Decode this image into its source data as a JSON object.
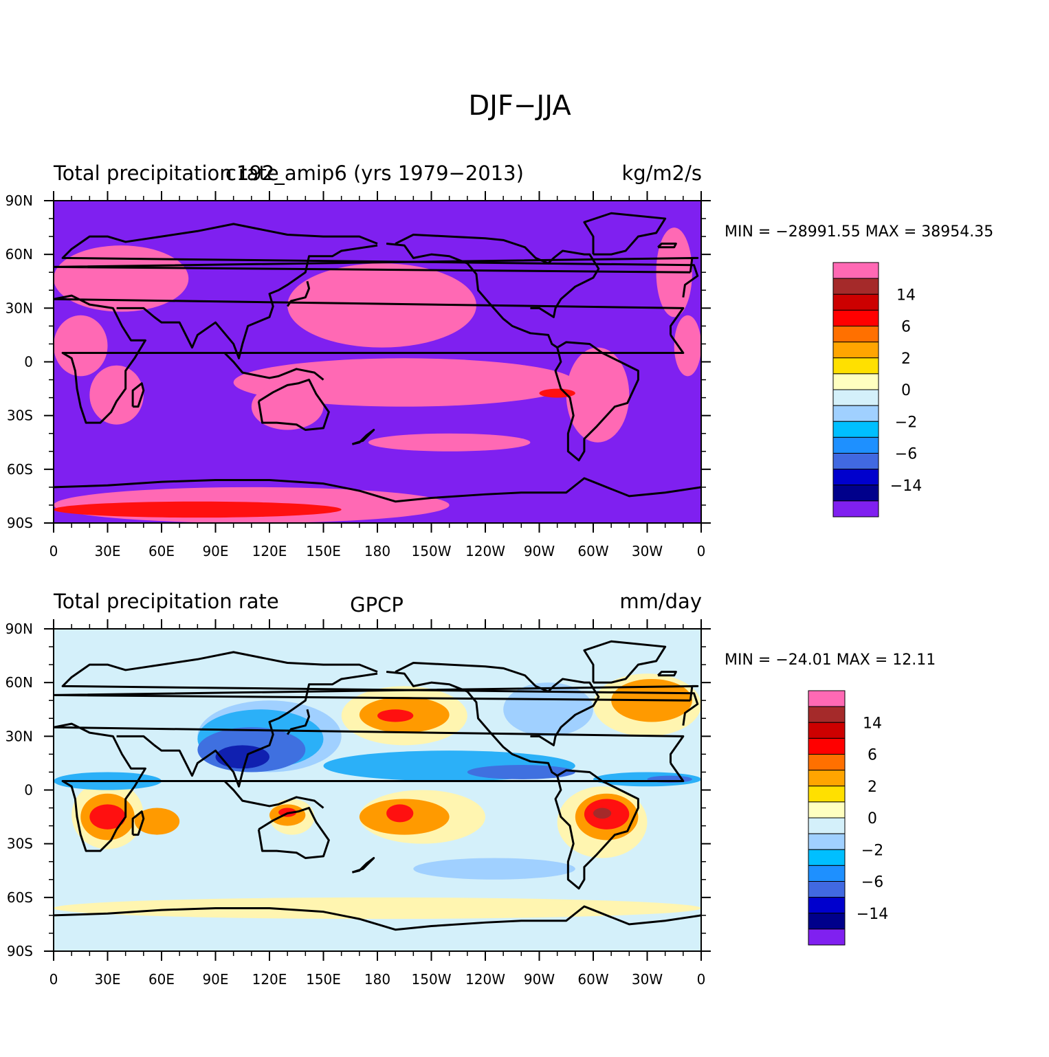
{
  "figure_title": "DJF−JJA",
  "panels": [
    {
      "id": "model",
      "left_title": "Total precipitation rate",
      "center_title": "c192_amip6 (yrs 1979−2013)",
      "right_title": "kg/m2/s",
      "minmax": "MIN = −28991.55 MAX = 38954.35",
      "background_fill": "#7F20F0",
      "field": [
        {
          "level": "pink",
          "lon": [
            345,
            30
          ],
          "lat": [
            -8,
            26
          ]
        },
        {
          "level": "pink",
          "lon": [
            20,
            50
          ],
          "lat": [
            -35,
            -2
          ]
        },
        {
          "level": "pink",
          "lon": [
            0,
            75
          ],
          "lat": [
            28,
            65
          ]
        },
        {
          "level": "pink",
          "lon": [
            130,
            235
          ],
          "lat": [
            8,
            55
          ]
        },
        {
          "level": "pink",
          "lon": [
            100,
            290
          ],
          "lat": [
            -25,
            2
          ]
        },
        {
          "level": "pink",
          "lon": [
            285,
            320
          ],
          "lat": [
            -45,
            8
          ]
        },
        {
          "level": "pink",
          "lon": [
            110,
            150
          ],
          "lat": [
            -38,
            -12
          ]
        },
        {
          "level": "pink",
          "lon": [
            335,
            355
          ],
          "lat": [
            25,
            75
          ]
        },
        {
          "level": "pink",
          "lon": [
            175,
            265
          ],
          "lat": [
            -50,
            -40
          ]
        },
        {
          "level": "pink",
          "lon": [
            0,
            220
          ],
          "lat": [
            -90,
            -70
          ]
        },
        {
          "level": "red",
          "lon": [
            0,
            160
          ],
          "lat": [
            -87,
            -78
          ]
        },
        {
          "level": "red",
          "lon": [
            270,
            290
          ],
          "lat": [
            -20,
            -15
          ]
        }
      ]
    },
    {
      "id": "obs",
      "left_title": "Total precipitation rate",
      "center_title": "GPCP",
      "right_title": "mm/day",
      "minmax": "MIN = −24.01 MAX =  12.11",
      "background_fill": "#D4F0FA",
      "field": [
        {
          "level": "yellow",
          "lon": [
            10,
            50
          ],
          "lat": [
            -33,
            5
          ]
        },
        {
          "level": "orange",
          "lon": [
            15,
            45
          ],
          "lat": [
            -28,
            -2
          ]
        },
        {
          "level": "red",
          "lon": [
            20,
            40
          ],
          "lat": [
            -22,
            -8
          ]
        },
        {
          "level": "orange",
          "lon": [
            45,
            70
          ],
          "lat": [
            -25,
            -10
          ]
        },
        {
          "level": "yellow",
          "lon": [
            170,
            240
          ],
          "lat": [
            -30,
            0
          ]
        },
        {
          "level": "orange",
          "lon": [
            170,
            220
          ],
          "lat": [
            -25,
            -5
          ]
        },
        {
          "level": "red",
          "lon": [
            185,
            200
          ],
          "lat": [
            -18,
            -8
          ]
        },
        {
          "level": "yellow",
          "lon": [
            120,
            145
          ],
          "lat": [
            -25,
            -5
          ]
        },
        {
          "level": "orange",
          "lon": [
            120,
            140
          ],
          "lat": [
            -20,
            -8
          ]
        },
        {
          "level": "red",
          "lon": [
            125,
            135
          ],
          "lat": [
            -15,
            -10
          ]
        },
        {
          "level": "yellow",
          "lon": [
            280,
            330
          ],
          "lat": [
            -38,
            2
          ]
        },
        {
          "level": "orange",
          "lon": [
            290,
            325
          ],
          "lat": [
            -28,
            -2
          ]
        },
        {
          "level": "red",
          "lon": [
            295,
            320
          ],
          "lat": [
            -22,
            -5
          ]
        },
        {
          "level": "darkred",
          "lon": [
            300,
            310
          ],
          "lat": [
            -16,
            -10
          ]
        },
        {
          "level": "yellow",
          "lon": [
            160,
            230
          ],
          "lat": [
            25,
            58
          ]
        },
        {
          "level": "orange",
          "lon": [
            170,
            220
          ],
          "lat": [
            32,
            52
          ]
        },
        {
          "level": "red",
          "lon": [
            180,
            200
          ],
          "lat": [
            38,
            45
          ]
        },
        {
          "level": "yellow",
          "lon": [
            300,
            360
          ],
          "lat": [
            30,
            65
          ]
        },
        {
          "level": "orange",
          "lon": [
            310,
            355
          ],
          "lat": [
            38,
            62
          ]
        },
        {
          "level": "lightblue",
          "lon": [
            80,
            160
          ],
          "lat": [
            10,
            50
          ]
        },
        {
          "level": "cyan",
          "lon": [
            80,
            150
          ],
          "lat": [
            12,
            45
          ]
        },
        {
          "level": "blue",
          "lon": [
            80,
            140
          ],
          "lat": [
            10,
            35
          ]
        },
        {
          "level": "darkblue",
          "lon": [
            90,
            120
          ],
          "lat": [
            12,
            25
          ]
        },
        {
          "level": "cyan",
          "lon": [
            150,
            290
          ],
          "lat": [
            5,
            22
          ]
        },
        {
          "level": "blue",
          "lon": [
            230,
            290
          ],
          "lat": [
            6,
            14
          ]
        },
        {
          "level": "cyan",
          "lon": [
            300,
            360
          ],
          "lat": [
            2,
            10
          ]
        },
        {
          "level": "blue",
          "lon": [
            330,
            355
          ],
          "lat": [
            4,
            8
          ]
        },
        {
          "level": "cyan",
          "lon": [
            0,
            60
          ],
          "lat": [
            0,
            10
          ]
        },
        {
          "level": "lightblue",
          "lon": [
            250,
            300
          ],
          "lat": [
            30,
            60
          ]
        },
        {
          "level": "yellow",
          "lon": [
            0,
            360
          ],
          "lat": [
            -72,
            -60
          ]
        },
        {
          "level": "lightblue",
          "lon": [
            200,
            290
          ],
          "lat": [
            -50,
            -38
          ]
        }
      ]
    }
  ],
  "lat_ticks": [
    "90N",
    "60N",
    "30N",
    "0",
    "30S",
    "60S",
    "90S"
  ],
  "lon_ticks": [
    "0",
    "30E",
    "60E",
    "90E",
    "120E",
    "150E",
    "180",
    "150W",
    "120W",
    "90W",
    "60W",
    "30W",
    "0"
  ],
  "colorbar": {
    "colors": [
      "#FF69B4",
      "#A52A2A",
      "#CD0000",
      "#FF0000",
      "#FF7000",
      "#FFA500",
      "#FFE000",
      "#FFFFC0",
      "#D4F0FA",
      "#A0D0FF",
      "#00BFFF",
      "#1E90FF",
      "#4169E1",
      "#0000CD",
      "#00008B",
      "#8020F0"
    ],
    "labels": [
      "14",
      "6",
      "2",
      "0",
      "−2",
      "−6",
      "−14"
    ]
  },
  "level_colors": {
    "pink": "#FF69B4",
    "darkred": "#A52A2A",
    "red": "#FF1010",
    "orange": "#FF9A00",
    "yellow": "#FFF5B0",
    "lightblue": "#A0D0FF",
    "cyan": "#2BB0F8",
    "blue": "#3F70E0",
    "darkblue": "#1020B0"
  },
  "coastlines": [
    [
      [
        -10,
        36
      ],
      [
        -9,
        43
      ],
      [
        -2,
        48
      ],
      [
        -4,
        54
      ],
      [
        5,
        58
      ],
      [
        10,
        63
      ],
      [
        20,
        70
      ],
      [
        30,
        70
      ],
      [
        40,
        67
      ],
      [
        60,
        70
      ],
      [
        80,
        73
      ],
      [
        100,
        77
      ],
      [
        130,
        71
      ],
      [
        150,
        70
      ],
      [
        170,
        70
      ],
      [
        180,
        66
      ]
    ],
    [
      [
        -17,
        15
      ],
      [
        -10,
        5
      ],
      [
        5,
        5
      ],
      [
        10,
        2
      ],
      [
        12,
        -5
      ],
      [
        13,
        -15
      ],
      [
        15,
        -25
      ],
      [
        18,
        -34
      ],
      [
        26,
        -34
      ],
      [
        32,
        -28
      ],
      [
        35,
        -22
      ],
      [
        40,
        -15
      ],
      [
        40,
        -5
      ],
      [
        45,
        2
      ],
      [
        51,
        12
      ],
      [
        43,
        12
      ],
      [
        38,
        20
      ],
      [
        33,
        30
      ],
      [
        20,
        32
      ],
      [
        10,
        37
      ],
      [
        0,
        35
      ],
      [
        -10,
        30
      ],
      [
        -17,
        20
      ],
      [
        -17,
        15
      ]
    ],
    [
      [
        35,
        30
      ],
      [
        50,
        30
      ],
      [
        56,
        25
      ],
      [
        60,
        22
      ],
      [
        70,
        22
      ],
      [
        73,
        16
      ],
      [
        77,
        8
      ],
      [
        80,
        15
      ],
      [
        90,
        22
      ],
      [
        95,
        16
      ],
      [
        100,
        10
      ],
      [
        103,
        2
      ],
      [
        105,
        10
      ],
      [
        108,
        20
      ],
      [
        120,
        25
      ],
      [
        122,
        31
      ],
      [
        120,
        38
      ],
      [
        125,
        40
      ],
      [
        130,
        43
      ],
      [
        140,
        50
      ],
      [
        142,
        59
      ],
      [
        155,
        59
      ],
      [
        160,
        62
      ],
      [
        180,
        65
      ]
    ],
    [
      [
        114,
        -22
      ],
      [
        116,
        -34
      ],
      [
        124,
        -34
      ],
      [
        135,
        -35
      ],
      [
        140,
        -38
      ],
      [
        150,
        -37
      ],
      [
        153,
        -28
      ],
      [
        146,
        -18
      ],
      [
        142,
        -10
      ],
      [
        136,
        -12
      ],
      [
        130,
        -13
      ],
      [
        122,
        -17
      ],
      [
        114,
        -22
      ]
    ],
    [
      [
        95,
        5
      ],
      [
        100,
        0
      ],
      [
        105,
        -6
      ],
      [
        115,
        -8
      ],
      [
        120,
        -9
      ],
      [
        125,
        -8
      ],
      [
        135,
        -4
      ],
      [
        145,
        -6
      ],
      [
        150,
        -10
      ]
    ],
    [
      [
        185,
        66
      ],
      [
        195,
        65
      ],
      [
        200,
        58
      ],
      [
        210,
        60
      ],
      [
        220,
        59
      ],
      [
        230,
        55
      ],
      [
        235,
        49
      ],
      [
        236,
        40
      ],
      [
        242,
        33
      ],
      [
        250,
        24
      ],
      [
        255,
        20
      ],
      [
        265,
        16
      ],
      [
        275,
        15
      ],
      [
        277,
        10
      ],
      [
        280,
        8
      ]
    ],
    [
      [
        280,
        8
      ],
      [
        282,
        0
      ],
      [
        279,
        -5
      ],
      [
        282,
        -15
      ],
      [
        287,
        -20
      ],
      [
        289,
        -30
      ],
      [
        286,
        -40
      ],
      [
        286,
        -50
      ],
      [
        292,
        -55
      ],
      [
        295,
        -50
      ],
      [
        295,
        -43
      ],
      [
        302,
        -36
      ],
      [
        312,
        -25
      ],
      [
        319,
        -23
      ],
      [
        325,
        -10
      ],
      [
        325,
        -5
      ],
      [
        315,
        0
      ],
      [
        305,
        5
      ],
      [
        298,
        10
      ],
      [
        285,
        11
      ],
      [
        280,
        8
      ]
    ],
    [
      [
        265,
        30
      ],
      [
        270,
        30
      ],
      [
        278,
        25
      ],
      [
        279,
        30
      ],
      [
        282,
        35
      ],
      [
        290,
        42
      ],
      [
        296,
        45
      ],
      [
        300,
        47
      ],
      [
        303,
        52
      ],
      [
        298,
        60
      ],
      [
        295,
        60
      ],
      [
        283,
        62
      ],
      [
        278,
        58
      ],
      [
        275,
        55
      ],
      [
        268,
        58
      ],
      [
        262,
        64
      ],
      [
        250,
        68
      ],
      [
        240,
        69
      ],
      [
        220,
        70
      ],
      [
        200,
        71
      ],
      [
        190,
        66
      ]
    ],
    [
      [
        300,
        60
      ],
      [
        310,
        60
      ],
      [
        318,
        62
      ],
      [
        325,
        70
      ],
      [
        335,
        72
      ],
      [
        340,
        80
      ],
      [
        310,
        83
      ],
      [
        295,
        78
      ],
      [
        300,
        70
      ],
      [
        300,
        60
      ]
    ],
    [
      [
        0,
        -70
      ],
      [
        30,
        -69
      ],
      [
        60,
        -67
      ],
      [
        90,
        -66
      ],
      [
        120,
        -66
      ],
      [
        150,
        -68
      ],
      [
        170,
        -72
      ],
      [
        190,
        -78
      ],
      [
        210,
        -76
      ],
      [
        240,
        -74
      ],
      [
        260,
        -73
      ],
      [
        285,
        -73
      ],
      [
        295,
        -65
      ],
      [
        300,
        -67
      ],
      [
        320,
        -75
      ],
      [
        340,
        -73
      ],
      [
        360,
        -70
      ]
    ],
    [
      [
        166,
        -46
      ],
      [
        170,
        -45
      ],
      [
        174,
        -41
      ],
      [
        178,
        -38
      ],
      [
        176,
        -40
      ],
      [
        172,
        -44
      ],
      [
        166,
        -46
      ]
    ],
    [
      [
        130,
        31
      ],
      [
        132,
        34
      ],
      [
        136,
        35
      ],
      [
        140,
        36
      ],
      [
        142,
        41
      ],
      [
        141,
        45
      ]
    ],
    [
      [
        -6,
        50
      ],
      [
        -5,
        58
      ],
      [
        -2,
        58
      ],
      [
        0,
        53
      ],
      [
        -6,
        50
      ]
    ],
    [
      [
        44,
        -25
      ],
      [
        47,
        -25
      ],
      [
        50,
        -16
      ],
      [
        49,
        -12
      ],
      [
        44,
        -16
      ],
      [
        44,
        -25
      ]
    ],
    [
      [
        -24,
        64
      ],
      [
        -15,
        64
      ],
      [
        -14,
        66
      ],
      [
        -22,
        66
      ],
      [
        -24,
        64
      ]
    ]
  ]
}
